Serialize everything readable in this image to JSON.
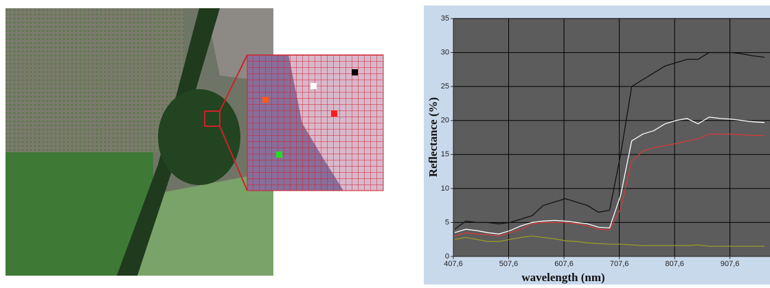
{
  "chart_data": {
    "type": "line",
    "x_label": "wavelength (nm)",
    "y_label": "Reflectance (%)",
    "x": [
      410,
      430,
      450,
      470,
      490,
      510,
      530,
      550,
      570,
      590,
      610,
      630,
      650,
      670,
      690,
      710,
      730,
      750,
      770,
      790,
      810,
      830,
      850,
      870,
      890,
      910,
      930,
      950,
      970
    ],
    "series": [
      {
        "color": "#111111",
        "values": [
          4,
          5.2,
          5,
          5,
          4.8,
          5,
          5.5,
          6,
          7.5,
          8,
          8.5,
          8,
          7.5,
          6.5,
          6.8,
          15,
          25,
          26,
          27,
          28,
          28.5,
          29,
          29,
          30,
          30,
          30,
          29.8,
          29.5,
          29.3
        ]
      },
      {
        "color": "#ffffff",
        "values": [
          3.5,
          4,
          3.8,
          3.5,
          3.3,
          3.8,
          4.5,
          5,
          5.2,
          5.3,
          5.2,
          5,
          4.8,
          4.3,
          4.2,
          9,
          17,
          18,
          18.5,
          19.5,
          20,
          20.3,
          19.5,
          20.5,
          20.3,
          20.2,
          20,
          19.8,
          19.7
        ]
      },
      {
        "color": "#d43a3a",
        "values": [
          3,
          3.5,
          3.3,
          3.2,
          3,
          3.5,
          4,
          4.8,
          5,
          5,
          5,
          4.8,
          4.5,
          4,
          3.9,
          7,
          14,
          15.5,
          16,
          16.3,
          16.6,
          17,
          17.3,
          18,
          18,
          18,
          17.9,
          17.8,
          17.8
        ]
      },
      {
        "color": "#9a9a2a",
        "values": [
          2.5,
          2.8,
          2.5,
          2.2,
          2.2,
          2.5,
          2.8,
          3,
          2.8,
          2.6,
          2.3,
          2.2,
          2,
          1.9,
          1.8,
          1.8,
          1.7,
          1.6,
          1.6,
          1.6,
          1.6,
          1.6,
          1.7,
          1.5,
          1.5,
          1.5,
          1.5,
          1.5,
          1.5
        ]
      }
    ],
    "xlim": [
      407.6,
      980
    ],
    "xticks": [
      {
        "value": 407.6,
        "label": "407,6"
      },
      {
        "value": 507.6,
        "label": "507,6"
      },
      {
        "value": 607.6,
        "label": "607,6"
      },
      {
        "value": 707.6,
        "label": "707,6"
      },
      {
        "value": 807.6,
        "label": "807,6"
      },
      {
        "value": 907.6,
        "label": "907,6"
      }
    ],
    "ylim": [
      0,
      35
    ],
    "yticks": [
      0,
      5,
      10,
      15,
      20,
      25,
      30,
      35
    ],
    "grid": true
  }
}
